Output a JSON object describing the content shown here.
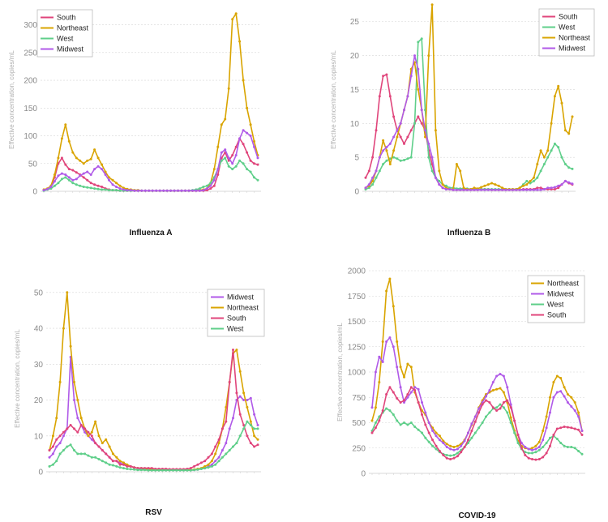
{
  "chart_data": [
    {
      "type": "line",
      "title": "Influenza A",
      "ylabel": "Effective concentration, copies/mL",
      "yticks": [
        0,
        50,
        100,
        150,
        200,
        250,
        300
      ],
      "ylim": [
        0,
        330
      ],
      "legend_position": "top-left",
      "series": [
        {
          "name": "South",
          "color": "#e0457b",
          "values": [
            2,
            4,
            10,
            25,
            50,
            60,
            48,
            40,
            38,
            34,
            30,
            25,
            20,
            15,
            12,
            10,
            8,
            5,
            3,
            2,
            2,
            1,
            1,
            1,
            1,
            1,
            1,
            1,
            1,
            1,
            1,
            1,
            1,
            1,
            1,
            1,
            1,
            1,
            1,
            1,
            1,
            1,
            1,
            1,
            1,
            2,
            5,
            10,
            30,
            60,
            70,
            55,
            65,
            80,
            95,
            85,
            70,
            55,
            50,
            48
          ]
        },
        {
          "name": "Northeast",
          "color": "#d9a400",
          "values": [
            3,
            5,
            10,
            30,
            60,
            95,
            120,
            90,
            70,
            60,
            55,
            50,
            55,
            58,
            75,
            60,
            48,
            35,
            25,
            20,
            15,
            10,
            6,
            4,
            3,
            2,
            2,
            1,
            1,
            1,
            1,
            1,
            1,
            1,
            1,
            1,
            1,
            1,
            1,
            1,
            1,
            1,
            1,
            2,
            3,
            5,
            15,
            40,
            80,
            120,
            130,
            185,
            310,
            320,
            270,
            200,
            150,
            120,
            90,
            65
          ]
        },
        {
          "name": "West",
          "color": "#5fcf8a",
          "values": [
            1,
            3,
            5,
            10,
            15,
            22,
            25,
            20,
            15,
            12,
            10,
            8,
            7,
            6,
            5,
            4,
            3,
            3,
            2,
            2,
            2,
            1,
            1,
            1,
            1,
            1,
            1,
            1,
            1,
            1,
            1,
            1,
            1,
            1,
            1,
            1,
            1,
            1,
            1,
            1,
            1,
            2,
            3,
            5,
            8,
            10,
            15,
            25,
            40,
            55,
            60,
            45,
            40,
            45,
            55,
            50,
            40,
            35,
            25,
            20
          ]
        },
        {
          "name": "Midwest",
          "color": "#b05ae8",
          "values": [
            2,
            4,
            8,
            18,
            28,
            32,
            30,
            25,
            20,
            22,
            28,
            32,
            35,
            30,
            40,
            45,
            40,
            30,
            20,
            12,
            8,
            5,
            3,
            2,
            2,
            1,
            1,
            1,
            1,
            1,
            1,
            1,
            1,
            1,
            1,
            1,
            1,
            1,
            1,
            1,
            1,
            1,
            1,
            1,
            2,
            5,
            10,
            20,
            40,
            70,
            75,
            60,
            50,
            65,
            95,
            110,
            105,
            100,
            80,
            60
          ]
        }
      ]
    },
    {
      "type": "line",
      "title": "Influenza B",
      "ylabel": "Effective concentration, copies/mL",
      "yticks": [
        0,
        5,
        10,
        15,
        20,
        25
      ],
      "ylim": [
        0,
        27
      ],
      "legend_position": "top-right",
      "series": [
        {
          "name": "South",
          "color": "#e0457b",
          "values": [
            2,
            3,
            5,
            9,
            14,
            17,
            17.2,
            14,
            11,
            9,
            8,
            7,
            8,
            9,
            10,
            11,
            10,
            9,
            6,
            4,
            2,
            1,
            0.5,
            0.3,
            0.3,
            0.2,
            0.2,
            0.2,
            0.2,
            0.2,
            0.2,
            0.2,
            0.2,
            0.3,
            0.3,
            0.3,
            0.2,
            0.2,
            0.2,
            0.2,
            0.2,
            0.2,
            0.2,
            0.2,
            0.2,
            0.3,
            0.3,
            0.3,
            0.3,
            0.5,
            0.5,
            0.3,
            0.3,
            0.3,
            0.3,
            0.5,
            1,
            1.5,
            1.2,
            1
          ]
        },
        {
          "name": "West",
          "color": "#5fcf8a",
          "values": [
            0.3,
            0.5,
            1,
            2,
            3,
            4,
            4.5,
            4.8,
            5,
            4.8,
            4.5,
            4.6,
            4.8,
            5,
            10,
            22,
            22.5,
            12,
            5,
            3,
            2,
            1.5,
            1,
            0.8,
            0.5,
            0.5,
            0.4,
            0.4,
            0.4,
            0.4,
            0.3,
            0.3,
            0.3,
            0.3,
            0.3,
            0.3,
            0.3,
            0.3,
            0.3,
            0.3,
            0.3,
            0.3,
            0.3,
            0.3,
            0.5,
            1,
            1.5,
            1.2,
            1.5,
            2,
            3,
            4,
            5,
            6,
            7,
            6.5,
            5,
            4,
            3.5,
            3.3
          ]
        },
        {
          "name": "Northeast",
          "color": "#d9a400",
          "values": [
            0.5,
            0.8,
            1.5,
            3,
            5,
            7.5,
            6,
            4,
            6,
            8,
            10,
            12,
            14,
            18,
            19,
            15,
            12,
            8,
            20,
            27.5,
            9,
            3,
            1,
            0.5,
            0.3,
            0.3,
            4,
            3,
            0.5,
            0.3,
            0.3,
            0.5,
            0.4,
            0.6,
            0.8,
            1,
            1.2,
            1,
            0.8,
            0.5,
            0.3,
            0.3,
            0.3,
            0.3,
            0.5,
            0.8,
            1,
            1.5,
            2,
            4,
            6,
            5,
            6,
            10,
            14,
            15.5,
            13,
            9,
            8.5,
            11
          ]
        },
        {
          "name": "Midwest",
          "color": "#b05ae8",
          "values": [
            0.5,
            1,
            2,
            3,
            5,
            6,
            6.5,
            7,
            8,
            9,
            10,
            12,
            14,
            17,
            20,
            18,
            12,
            9,
            7,
            5,
            2,
            1,
            0.5,
            0.3,
            0.3,
            0.2,
            0.2,
            0.2,
            0.2,
            0.2,
            0.2,
            0.2,
            0.2,
            0.2,
            0.2,
            0.2,
            0.2,
            0.2,
            0.2,
            0.2,
            0.2,
            0.2,
            0.2,
            0.2,
            0.2,
            0.2,
            0.2,
            0.2,
            0.2,
            0.2,
            0.2,
            0.3,
            0.5,
            0.5,
            0.6,
            0.8,
            1,
            1.5,
            1.3,
            1.1
          ]
        }
      ]
    },
    {
      "type": "line",
      "title": "RSV",
      "ylabel": "Effective concentration, copies/mL",
      "yticks": [
        0,
        10,
        20,
        30,
        40,
        50
      ],
      "ylim": [
        0,
        52
      ],
      "legend_position": "top-right",
      "series": [
        {
          "name": "Midwest",
          "color": "#b05ae8",
          "values": [
            4,
            5,
            7,
            8,
            10,
            12,
            32,
            20,
            15,
            13,
            11,
            10,
            9,
            8,
            7,
            6,
            5,
            4,
            3,
            3,
            2.5,
            2,
            1.8,
            1.5,
            1.2,
            1,
            0.8,
            0.8,
            0.7,
            0.6,
            0.6,
            0.5,
            0.5,
            0.5,
            0.5,
            0.5,
            0.5,
            0.5,
            0.5,
            0.5,
            0.5,
            0.5,
            0.6,
            0.8,
            1,
            1.5,
            2,
            3,
            4,
            6,
            8,
            12,
            15,
            20,
            21,
            20,
            20,
            20.5,
            16,
            13
          ]
        },
        {
          "name": "Northeast",
          "color": "#d9a400",
          "values": [
            6,
            10,
            15,
            25,
            40,
            50,
            35,
            25,
            20,
            15,
            12,
            10,
            11,
            14,
            10,
            8,
            9,
            7,
            5,
            4,
            3,
            2.5,
            2,
            1.5,
            1.2,
            1,
            1,
            0.8,
            0.8,
            0.7,
            0.7,
            0.6,
            0.6,
            0.6,
            0.5,
            0.5,
            0.5,
            0.5,
            0.5,
            0.5,
            0.5,
            0.6,
            0.8,
            1,
            1.5,
            2,
            3,
            5,
            8,
            12,
            18,
            25,
            33,
            34,
            28,
            22,
            18,
            14,
            10,
            9
          ]
        },
        {
          "name": "South",
          "color": "#e0457b",
          "values": [
            6,
            7,
            9,
            10,
            11,
            12,
            13,
            12,
            11,
            13,
            12,
            11,
            10,
            8,
            7,
            6,
            5,
            4,
            3,
            3,
            2,
            2,
            1.5,
            1.5,
            1.2,
            1,
            1,
            1,
            1,
            1,
            0.8,
            0.8,
            0.8,
            0.8,
            0.7,
            0.7,
            0.7,
            0.7,
            0.7,
            0.8,
            1,
            1.5,
            2,
            2.5,
            3,
            4,
            5,
            7,
            9,
            12,
            14,
            25,
            34,
            22,
            16,
            13,
            10,
            8,
            7,
            7.5
          ]
        },
        {
          "name": "West",
          "color": "#5fcf8a",
          "values": [
            1.5,
            2,
            3,
            5,
            6,
            7,
            7.5,
            6,
            5,
            5,
            5,
            4.5,
            4,
            4,
            3.5,
            3,
            2.5,
            2,
            1.8,
            1.5,
            1.2,
            1,
            0.8,
            0.7,
            0.6,
            0.5,
            0.5,
            0.5,
            0.4,
            0.4,
            0.4,
            0.4,
            0.4,
            0.4,
            0.4,
            0.4,
            0.4,
            0.4,
            0.4,
            0.4,
            0.4,
            0.5,
            0.6,
            0.8,
            1,
            1.2,
            1.5,
            2,
            3,
            4,
            5,
            6,
            7,
            8,
            10,
            12,
            14,
            13,
            12,
            12
          ]
        }
      ]
    },
    {
      "type": "line",
      "title": "COVID-19",
      "ylabel": "Effective concentration, copies/mL",
      "yticks": [
        0,
        250,
        500,
        750,
        1000,
        1250,
        1500,
        1750,
        2000
      ],
      "ylim": [
        0,
        2000
      ],
      "legend_position": "top-right",
      "series": [
        {
          "name": "Northeast",
          "color": "#d9a400",
          "values": [
            520,
            650,
            900,
            1300,
            1800,
            1920,
            1650,
            1300,
            1050,
            950,
            1080,
            1050,
            800,
            700,
            620,
            580,
            500,
            450,
            400,
            370,
            320,
            290,
            270,
            260,
            270,
            290,
            330,
            400,
            480,
            560,
            650,
            720,
            780,
            800,
            820,
            830,
            840,
            800,
            700,
            550,
            420,
            320,
            270,
            250,
            240,
            250,
            270,
            310,
            420,
            560,
            750,
            900,
            960,
            940,
            850,
            780,
            750,
            700,
            600,
            420
          ]
        },
        {
          "name": "Midwest",
          "color": "#b05ae8",
          "values": [
            650,
            1000,
            1150,
            1100,
            1300,
            1340,
            1250,
            1050,
            850,
            700,
            750,
            800,
            850,
            830,
            700,
            600,
            500,
            420,
            370,
            330,
            300,
            260,
            240,
            230,
            240,
            270,
            320,
            400,
            490,
            560,
            640,
            700,
            760,
            820,
            900,
            960,
            980,
            960,
            850,
            680,
            520,
            380,
            300,
            260,
            240,
            230,
            240,
            260,
            330,
            450,
            600,
            750,
            800,
            810,
            760,
            700,
            660,
            620,
            560,
            420
          ]
        },
        {
          "name": "West",
          "color": "#5fcf8a",
          "values": [
            420,
            500,
            560,
            600,
            640,
            620,
            580,
            520,
            480,
            500,
            480,
            500,
            460,
            430,
            400,
            350,
            310,
            270,
            240,
            210,
            190,
            180,
            175,
            180,
            200,
            230,
            260,
            300,
            350,
            400,
            450,
            500,
            560,
            600,
            640,
            650,
            680,
            650,
            600,
            500,
            400,
            300,
            240,
            210,
            200,
            200,
            210,
            230,
            260,
            300,
            350,
            370,
            340,
            300,
            270,
            260,
            260,
            250,
            220,
            190
          ]
        },
        {
          "name": "South",
          "color": "#e0457b",
          "values": [
            400,
            450,
            520,
            620,
            780,
            850,
            800,
            740,
            700,
            720,
            780,
            850,
            820,
            700,
            580,
            480,
            400,
            330,
            270,
            220,
            180,
            150,
            140,
            150,
            170,
            210,
            260,
            330,
            420,
            510,
            600,
            680,
            720,
            700,
            650,
            620,
            640,
            700,
            720,
            650,
            520,
            380,
            250,
            180,
            150,
            140,
            135,
            140,
            160,
            200,
            270,
            380,
            440,
            450,
            460,
            455,
            450,
            440,
            430,
            380
          ]
        }
      ]
    }
  ]
}
